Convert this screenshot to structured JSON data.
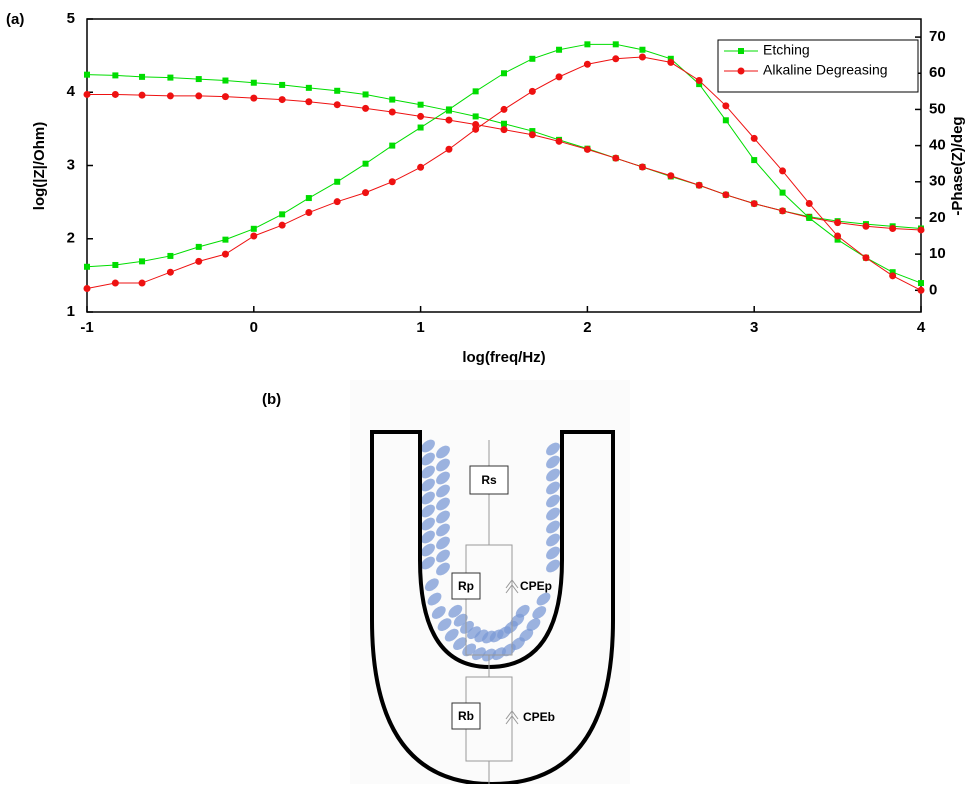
{
  "chart_data": {
    "type": "line",
    "panel_label": "(a)",
    "xlabel": "log(freq/Hz)",
    "ylabel": "log(|Z|/Ohm)",
    "y2label": "-Phase(Z)/deg",
    "xlim": [
      -1,
      4
    ],
    "xticks": [
      -1,
      0,
      1,
      2,
      3,
      4
    ],
    "ylim": [
      1,
      5
    ],
    "yticks": [
      1,
      2,
      3,
      4,
      5
    ],
    "y2lim": [
      -6,
      75
    ],
    "y2ticks": [
      0,
      10,
      20,
      30,
      40,
      50,
      60,
      70
    ],
    "legend": "upper right",
    "x": [
      -1,
      -0.83,
      -0.67,
      -0.5,
      -0.33,
      -0.17,
      0,
      0.17,
      0.33,
      0.5,
      0.67,
      0.83,
      1,
      1.17,
      1.33,
      1.5,
      1.67,
      1.83,
      2,
      2.17,
      2.33,
      2.5,
      2.67,
      2.83,
      3,
      3.17,
      3.33,
      3.5,
      3.67,
      3.83,
      4
    ],
    "series": [
      {
        "name": "Etching",
        "color": "#00dd00",
        "marker": "square",
        "values": [
          4.24,
          4.23,
          4.21,
          4.2,
          4.18,
          4.16,
          4.13,
          4.1,
          4.06,
          4.02,
          3.97,
          3.9,
          3.83,
          3.75,
          3.67,
          3.57,
          3.47,
          3.35,
          3.23,
          3.1,
          2.98,
          2.85,
          2.73,
          2.6,
          2.48,
          2.38,
          2.3,
          2.24,
          2.2,
          2.17,
          2.14
        ]
      },
      {
        "name": "Alkaline Degreasing",
        "color": "#ee1111",
        "marker": "circle",
        "values": [
          3.97,
          3.97,
          3.96,
          3.95,
          3.95,
          3.94,
          3.92,
          3.9,
          3.87,
          3.83,
          3.78,
          3.73,
          3.67,
          3.62,
          3.56,
          3.49,
          3.42,
          3.33,
          3.22,
          3.1,
          2.98,
          2.86,
          2.73,
          2.6,
          2.48,
          2.38,
          2.29,
          2.22,
          2.17,
          2.14,
          2.12
        ]
      },
      {
        "color": "#00dd00",
        "marker": "square",
        "axis": "y2",
        "values": [
          6.5,
          7,
          8,
          9.5,
          12,
          14,
          17,
          21,
          25.5,
          30,
          35,
          40,
          45,
          50,
          55,
          60,
          64,
          66.5,
          68,
          68,
          66.5,
          64,
          57,
          47,
          36,
          27,
          20,
          14,
          9,
          5,
          2
        ]
      },
      {
        "color": "#ee1111",
        "marker": "circle",
        "axis": "y2",
        "values": [
          0.5,
          2,
          2,
          5,
          8,
          10,
          15,
          18,
          21.5,
          24.5,
          27,
          30,
          34,
          39,
          44.5,
          50,
          55,
          59,
          62.5,
          64,
          64.5,
          63,
          58,
          51,
          42,
          33,
          24,
          15,
          9,
          4,
          0
        ]
      }
    ]
  },
  "diagram": {
    "panel_label": "(b)",
    "resistors": [
      "Rs",
      "Rp",
      "Rb"
    ],
    "capacitors": [
      "CPEp",
      "CPEb"
    ]
  }
}
